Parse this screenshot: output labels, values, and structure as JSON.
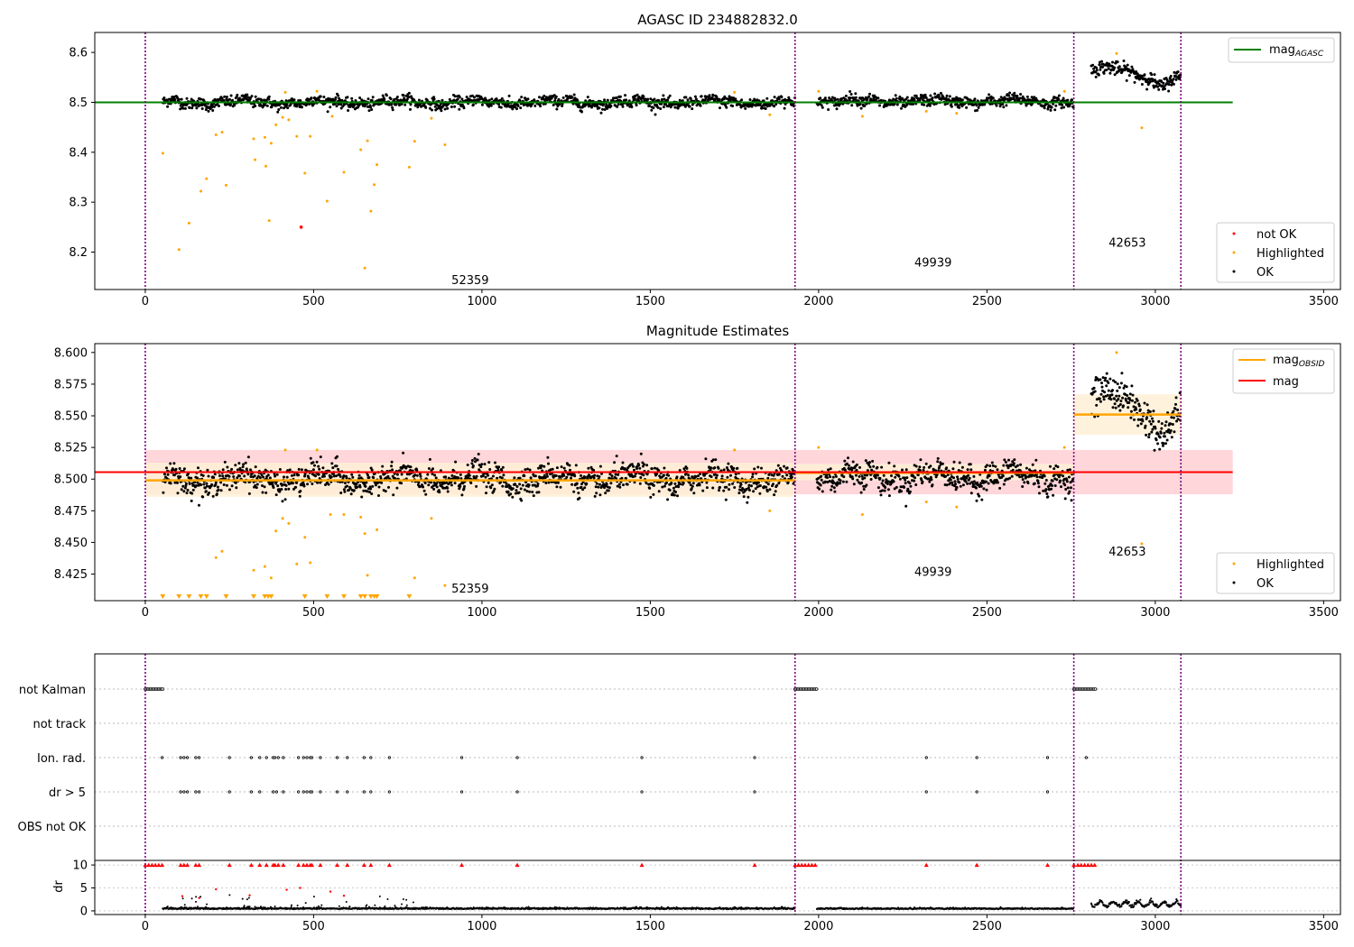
{
  "colors": {
    "ok": "#000000",
    "highlighted": "#ffa500",
    "not_ok": "#ff0000",
    "mag_agasc": "#008000",
    "mag_obsid": "#ffa500",
    "mag": "#ff0000",
    "obs_boundary": "#800080",
    "band_mag": "#ffd6da",
    "band_obsid": "#fff0d6"
  },
  "chart_data": [
    {
      "type": "scatter",
      "title": "AGASC ID 234882832.0",
      "xlim": [
        -150,
        3550
      ],
      "ylim": [
        8.125,
        8.64
      ],
      "xticks": [
        0,
        500,
        1000,
        1500,
        2000,
        2500,
        3000,
        3500
      ],
      "yticks": [
        8.2,
        8.3,
        8.4,
        8.5,
        8.6
      ],
      "xtick_labels": [
        "0",
        "500",
        "1000",
        "1500",
        "2000",
        "2500",
        "3000",
        "3500"
      ],
      "ytick_labels": [
        "8.2",
        "8.3",
        "8.4",
        "8.5",
        "8.6"
      ],
      "obs_boundaries": [
        0,
        1930,
        2758,
        3076
      ],
      "obsids": [
        {
          "label": "52359",
          "x": 965,
          "y": 8.145
        },
        {
          "label": "49939",
          "x": 2340,
          "y": 8.18
        },
        {
          "label": "42653",
          "x": 2917,
          "y": 8.22
        }
      ],
      "mag_agasc": {
        "value": 8.5,
        "x": [
          -150,
          3230
        ]
      },
      "series": [
        {
          "name": "OK",
          "segments": [
            {
              "x": [
                52,
                1930
              ],
              "mean": 8.5,
              "scatter": 0.008
            },
            {
              "x": [
                1995,
                2758
              ],
              "mean": 8.502,
              "scatter": 0.008
            },
            {
              "x": [
                2810,
                3076
              ],
              "trend": [
                [
                  2810,
                  8.565
                ],
                [
                  2880,
                  8.575
                ],
                [
                  2960,
                  8.552
                ],
                [
                  3010,
                  8.528
                ],
                [
                  3076,
                  8.552
                ]
              ],
              "scatter": 0.01
            }
          ]
        },
        {
          "name": "Highlighted",
          "points": [
            [
              52,
              8.398
            ],
            [
              100,
              8.205
            ],
            [
              130,
              8.258
            ],
            [
              165,
              8.322
            ],
            [
              182,
              8.347
            ],
            [
              210,
              8.435
            ],
            [
              228,
              8.44
            ],
            [
              240,
              8.334
            ],
            [
              322,
              8.427
            ],
            [
              326,
              8.385
            ],
            [
              355,
              8.43
            ],
            [
              358,
              8.372
            ],
            [
              368,
              8.263
            ],
            [
              374,
              8.418
            ],
            [
              388,
              8.455
            ],
            [
              408,
              8.47
            ],
            [
              416,
              8.52
            ],
            [
              426,
              8.465
            ],
            [
              450,
              8.432
            ],
            [
              474,
              8.358
            ],
            [
              490,
              8.432
            ],
            [
              510,
              8.522
            ],
            [
              540,
              8.302
            ],
            [
              555,
              8.472
            ],
            [
              590,
              8.36
            ],
            [
              640,
              8.405
            ],
            [
              652,
              8.168
            ],
            [
              660,
              8.423
            ],
            [
              670,
              8.282
            ],
            [
              680,
              8.335
            ],
            [
              688,
              8.375
            ],
            [
              784,
              8.37
            ],
            [
              800,
              8.422
            ],
            [
              850,
              8.468
            ],
            [
              890,
              8.415
            ],
            [
              1750,
              8.52
            ],
            [
              1855,
              8.475
            ],
            [
              2000,
              8.522
            ],
            [
              2130,
              8.472
            ],
            [
              2320,
              8.482
            ],
            [
              2410,
              8.478
            ],
            [
              2730,
              8.522
            ],
            [
              2885,
              8.598
            ],
            [
              2960,
              8.449
            ]
          ]
        },
        {
          "name": "not OK",
          "points": [
            [
              463,
              8.25
            ]
          ]
        }
      ],
      "legend_upper": {
        "position": "upper right",
        "entries": [
          {
            "label": "mag",
            "subscript": "AGASC"
          }
        ]
      },
      "legend_lower": {
        "position": "lower right",
        "entries": [
          "not OK",
          "Highlighted",
          "OK"
        ]
      }
    },
    {
      "type": "scatter",
      "title": "Magnitude Estimates",
      "xlim": [
        -150,
        3550
      ],
      "ylim": [
        8.404,
        8.607
      ],
      "xticks": [
        0,
        500,
        1000,
        1500,
        2000,
        2500,
        3000,
        3500
      ],
      "yticks": [
        8.425,
        8.45,
        8.475,
        8.5,
        8.525,
        8.55,
        8.575,
        8.6
      ],
      "xtick_labels": [
        "0",
        "500",
        "1000",
        "1500",
        "2000",
        "2500",
        "3000",
        "3500"
      ],
      "ytick_labels": [
        "8.425",
        "8.450",
        "8.475",
        "8.500",
        "8.525",
        "8.550",
        "8.575",
        "8.600"
      ],
      "obs_boundaries": [
        0,
        1930,
        2758,
        3076
      ],
      "obsids": [
        {
          "label": "52359",
          "x": 965,
          "y": 8.414
        },
        {
          "label": "49939",
          "x": 2340,
          "y": 8.427
        },
        {
          "label": "42653",
          "x": 2917,
          "y": 8.443
        }
      ],
      "mag": {
        "value": 8.5055,
        "band": [
          8.488,
          8.523
        ],
        "x": [
          0,
          3230
        ]
      },
      "mag_obsid": [
        {
          "x": [
            0,
            1930
          ],
          "value": 8.499,
          "band": [
            8.486,
            8.513
          ]
        },
        {
          "x": [
            1930,
            2758
          ],
          "value": 8.505,
          "band": [
            8.499,
            8.512
          ]
        },
        {
          "x": [
            2758,
            3076
          ],
          "value": 8.551,
          "band": [
            8.535,
            8.567
          ]
        }
      ],
      "series": [
        {
          "name": "OK",
          "segments": [
            {
              "x": [
                52,
                1930
              ],
              "mean": 8.5,
              "scatter": 0.0075
            },
            {
              "x": [
                1995,
                2758
              ],
              "mean": 8.502,
              "scatter": 0.0075
            },
            {
              "x": [
                2810,
                3076
              ],
              "trend": [
                [
                  2810,
                  8.565
                ],
                [
                  2880,
                  8.575
                ],
                [
                  2960,
                  8.552
                ],
                [
                  3010,
                  8.528
                ],
                [
                  3076,
                  8.552
                ]
              ],
              "scatter": 0.01
            }
          ]
        },
        {
          "name": "Highlighted",
          "points": [
            [
              210,
              8.438
            ],
            [
              228,
              8.443
            ],
            [
              322,
              8.428
            ],
            [
              355,
              8.431
            ],
            [
              374,
              8.422
            ],
            [
              388,
              8.459
            ],
            [
              408,
              8.469
            ],
            [
              416,
              8.523
            ],
            [
              426,
              8.465
            ],
            [
              450,
              8.433
            ],
            [
              474,
              8.454
            ],
            [
              490,
              8.434
            ],
            [
              510,
              8.523
            ],
            [
              550,
              8.472
            ],
            [
              590,
              8.472
            ],
            [
              640,
              8.47
            ],
            [
              652,
              8.457
            ],
            [
              660,
              8.424
            ],
            [
              688,
              8.46
            ],
            [
              800,
              8.422
            ],
            [
              850,
              8.469
            ],
            [
              890,
              8.416
            ],
            [
              1750,
              8.523
            ],
            [
              1855,
              8.475
            ],
            [
              2000,
              8.525
            ],
            [
              2130,
              8.472
            ],
            [
              2320,
              8.482
            ],
            [
              2410,
              8.478
            ],
            [
              2730,
              8.525
            ],
            [
              2885,
              8.6
            ],
            [
              2960,
              8.449
            ]
          ]
        },
        {
          "name": "Highlighted (below range)",
          "x": [
            52,
            100,
            130,
            165,
            182,
            240,
            322,
            355,
            365,
            374,
            474,
            540,
            590,
            640,
            652,
            670,
            680,
            688,
            784
          ]
        }
      ],
      "legend_upper": {
        "position": "upper right",
        "entries": [
          {
            "label": "mag",
            "subscript": "OBSID"
          },
          {
            "label": "mag"
          }
        ]
      },
      "legend_lower": {
        "position": "lower right",
        "entries": [
          "Highlighted",
          "OK"
        ]
      }
    },
    {
      "type": "scatter",
      "title": "",
      "xlim": [
        -150,
        3550
      ],
      "xticks": [
        0,
        500,
        1000,
        1500,
        2000,
        2500,
        3000,
        3500
      ],
      "xtick_labels": [
        "0",
        "500",
        "1000",
        "1500",
        "2000",
        "2500",
        "3000",
        "3500"
      ],
      "obs_boundaries": [
        0,
        1930,
        2758,
        3076
      ],
      "flags": [
        "not Kalman",
        "not track",
        "Ion. rad.",
        "dr > 5",
        "OBS not OK"
      ],
      "flag_points": {
        "not Kalman": {
          "ranges": [
            [
              0,
              52
            ],
            [
              1930,
              1995
            ],
            [
              2758,
              2822
            ]
          ]
        },
        "not track": {
          "points": []
        },
        "Ion. rad.": {
          "points": [
            50,
            105,
            115,
            125,
            150,
            160,
            250,
            315,
            340,
            360,
            380,
            385,
            395,
            410,
            455,
            470,
            480,
            490,
            495,
            520,
            570,
            600,
            650,
            670,
            725,
            940,
            1105,
            1475,
            1810,
            2320,
            2470,
            2680,
            2795
          ]
        },
        "dr > 5": {
          "points": [
            105,
            115,
            125,
            150,
            160,
            250,
            315,
            340,
            380,
            390,
            410,
            455,
            470,
            480,
            490,
            495,
            520,
            570,
            600,
            650,
            670,
            725,
            940,
            1105,
            1475,
            1810,
            2320,
            2470,
            2680
          ]
        },
        "OBS not OK": {
          "points": []
        }
      },
      "dr": {
        "ylabel": "dr",
        "yticks": [
          0,
          5,
          10
        ],
        "ylim": [
          -0.8,
          11
        ],
        "ytick_labels": [
          "0",
          "5",
          "10"
        ],
        "high_points": [
          0,
          10,
          20,
          30,
          40,
          50,
          105,
          115,
          125,
          150,
          160,
          250,
          315,
          340,
          360,
          380,
          385,
          395,
          410,
          455,
          470,
          480,
          490,
          495,
          520,
          570,
          600,
          650,
          670,
          725,
          940,
          1105,
          1475,
          1810,
          1930,
          1940,
          1950,
          1960,
          1970,
          1980,
          1990,
          2320,
          2470,
          2680,
          2758,
          2770,
          2780,
          2790,
          2800,
          2810,
          2820
        ],
        "mid_points_red": [
          [
            110,
            3.2
          ],
          [
            160,
            2.8
          ],
          [
            210,
            4.7
          ],
          [
            310,
            3.4
          ],
          [
            420,
            4.6
          ],
          [
            460,
            5.0
          ],
          [
            550,
            4.2
          ],
          [
            590,
            3.3
          ]
        ],
        "baseline": [
          {
            "x": [
              52,
              1930
            ],
            "mean": 0.4,
            "scatter": 0.25
          },
          {
            "x": [
              1995,
              2758
            ],
            "mean": 0.4,
            "scatter": 0.2
          },
          {
            "x": [
              2810,
              3076
            ],
            "mean": 1.2,
            "scatter": 0.6
          }
        ]
      }
    }
  ]
}
